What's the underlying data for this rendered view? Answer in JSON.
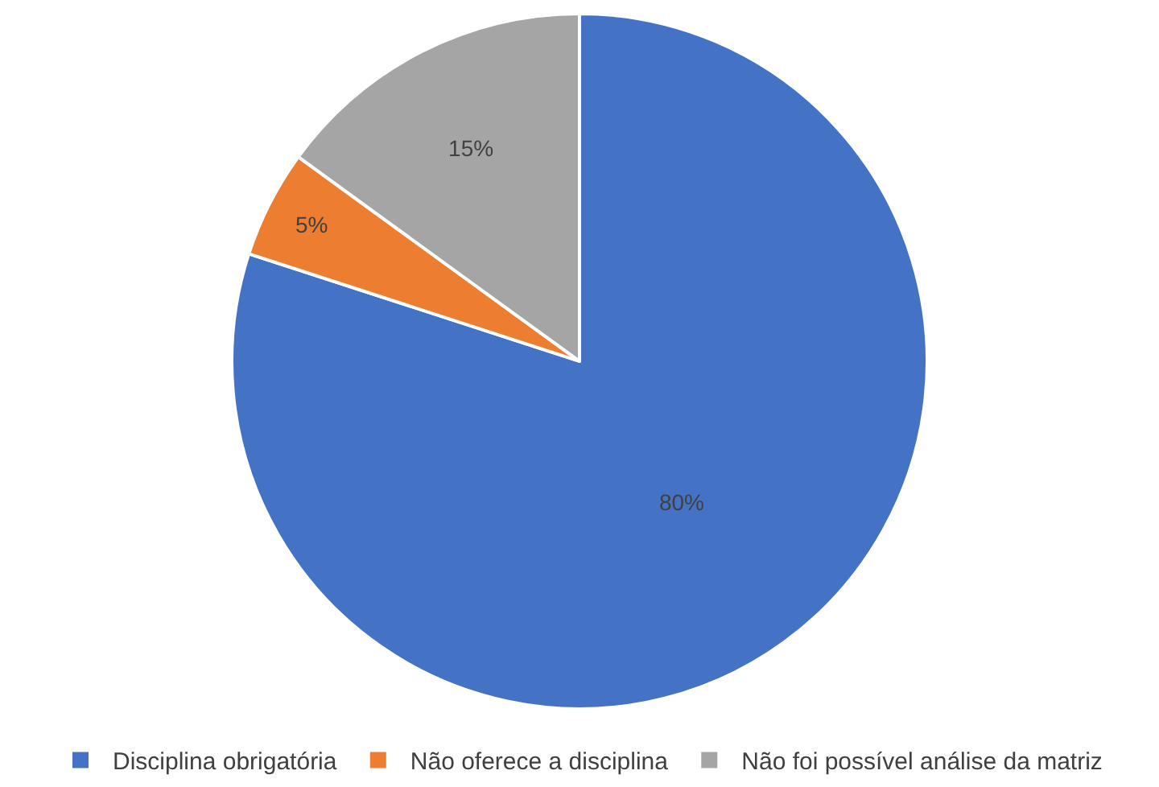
{
  "chart_data": {
    "type": "pie",
    "categories": [
      "Disciplina obrigatória",
      "Não oferece a disciplina",
      "Não foi possível análise da matriz"
    ],
    "values": [
      80,
      5,
      15
    ],
    "value_labels": [
      "80%",
      "5%",
      "15%"
    ],
    "colors": [
      "#4472c4",
      "#ed7d31",
      "#a5a5a5"
    ],
    "legend": "bottom"
  }
}
